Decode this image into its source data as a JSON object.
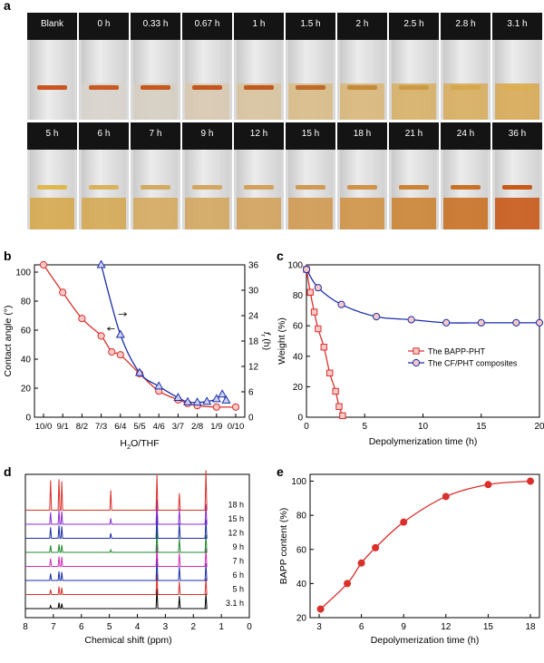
{
  "panel_labels": {
    "a": "a",
    "b": "b",
    "c": "c",
    "d": "d",
    "e": "e"
  },
  "vials_row1": [
    {
      "label": "Blank",
      "liquid": "#dcdcdc",
      "level": 0.0,
      "strip": "#c9551f"
    },
    {
      "label": "0 h",
      "liquid": "#d8d4cc",
      "level": 0.45,
      "strip": "#c65a22"
    },
    {
      "label": "0.33 h",
      "liquid": "#d6cfc2",
      "level": 0.45,
      "strip": "#c4581f"
    },
    {
      "label": "0.67 h",
      "liquid": "#d8c9b0",
      "level": 0.45,
      "strip": "#c2561e"
    },
    {
      "label": "1 h",
      "liquid": "#d8c39e",
      "level": 0.45,
      "strip": "#c05a20"
    },
    {
      "label": "1.5 h",
      "liquid": "#d9bd88",
      "level": 0.45,
      "strip": "#be6a28"
    },
    {
      "label": "2 h",
      "liquid": "#d9b77a",
      "level": 0.45,
      "strip": "#c48a3a"
    },
    {
      "label": "2.5 h",
      "liquid": "#d8b067",
      "level": 0.45,
      "strip": "#cc9a45"
    },
    {
      "label": "2.8 h",
      "liquid": "#d8ad5e",
      "level": 0.45,
      "strip": "#d6a84c"
    },
    {
      "label": "3.1 h",
      "liquid": "#d8aa55",
      "level": 0.45,
      "strip": "#dcb050"
    }
  ],
  "vials_row2": [
    {
      "label": "5 h",
      "liquid": "#d6a84e",
      "level": 0.4,
      "strip": "#e0b64f"
    },
    {
      "label": "6 h",
      "liquid": "#d4a954",
      "level": 0.4,
      "strip": "#d8b35c"
    },
    {
      "label": "7 h",
      "liquid": "#d4aa5e",
      "level": 0.4,
      "strip": "#d4aa5e"
    },
    {
      "label": "9 h",
      "liquid": "#d3a760",
      "level": 0.4,
      "strip": "#d3a760"
    },
    {
      "label": "12 h",
      "liquid": "#d2a25c",
      "level": 0.4,
      "strip": "#d2a25c"
    },
    {
      "label": "15 h",
      "liquid": "#d09a52",
      "level": 0.4,
      "strip": "#d09a52"
    },
    {
      "label": "18 h",
      "liquid": "#cf9246",
      "level": 0.4,
      "strip": "#cf9246"
    },
    {
      "label": "21 h",
      "liquid": "#cc8434",
      "level": 0.4,
      "strip": "#cc8434"
    },
    {
      "label": "24 h",
      "liquid": "#c97226",
      "level": 0.4,
      "strip": "#c97226"
    },
    {
      "label": "36 h",
      "liquid": "#c95a1a",
      "level": 0.4,
      "strip": "#c95a1a"
    }
  ],
  "chart_data": [
    {
      "panel": "b",
      "type": "line",
      "xlabel": "H2O/THF",
      "xlabel_parts": [
        "H",
        "2",
        "O/THF"
      ],
      "ylabel": "Contact angle (°)",
      "y2label": "f_r (h)",
      "y2label_parts": [
        "f",
        "r",
        "(h)"
      ],
      "categories": [
        "10/0",
        "9/1",
        "8/2",
        "7/3",
        "6/4",
        "5/5",
        "4/6",
        "3/7",
        "2/8",
        "1/9",
        "0/10"
      ],
      "ylim": [
        0,
        105
      ],
      "yticks": [
        0,
        20,
        40,
        60,
        80,
        100
      ],
      "y2lim": [
        0,
        36
      ],
      "y2ticks": [
        0,
        6,
        12,
        18,
        24,
        30,
        36
      ],
      "series": [
        {
          "axis": "left",
          "marker": "circle",
          "color": "#d9302c",
          "points": [
            [
              0,
              105
            ],
            [
              1,
              86
            ],
            [
              2,
              68
            ],
            [
              3,
              56
            ],
            [
              3.55,
              45
            ],
            [
              4,
              43
            ],
            [
              5,
              30
            ],
            [
              6,
              18
            ],
            [
              7,
              12
            ],
            [
              7.5,
              9.5
            ],
            [
              8,
              8
            ],
            [
              9,
              7
            ],
            [
              10,
              7
            ]
          ]
        },
        {
          "axis": "right",
          "marker": "triangle",
          "color": "#1a2ea8",
          "points": [
            [
              3,
              36
            ],
            [
              4,
              19.5
            ],
            [
              5,
              10.5
            ],
            [
              6,
              7.3
            ],
            [
              7,
              4.6
            ],
            [
              7.5,
              3.6
            ],
            [
              8,
              3.5
            ],
            [
              8.5,
              3.7
            ],
            [
              9,
              4.3
            ],
            [
              9.3,
              5.4
            ],
            [
              9.5,
              4.0
            ]
          ]
        }
      ]
    },
    {
      "panel": "c",
      "type": "line",
      "xlabel": "Depolymerization time (h)",
      "ylabel": "Weight (%)",
      "xlim": [
        0,
        20
      ],
      "xticks": [
        0,
        5,
        10,
        15,
        20
      ],
      "ylim": [
        0,
        100
      ],
      "yticks": [
        0,
        20,
        40,
        60,
        80,
        100
      ],
      "series": [
        {
          "name": "The BAPP-PHT",
          "marker": "square",
          "color": "#d9302c",
          "points": [
            [
              0,
              97
            ],
            [
              0.33,
              82
            ],
            [
              0.67,
              69
            ],
            [
              1,
              58
            ],
            [
              1.5,
              46
            ],
            [
              2,
              29
            ],
            [
              2.5,
              17
            ],
            [
              2.8,
              7
            ],
            [
              3.1,
              1
            ]
          ]
        },
        {
          "name": "The CF/PHT composites",
          "marker": "circle",
          "color": "#1a2ea8",
          "points": [
            [
              0,
              97
            ],
            [
              1,
              85
            ],
            [
              3,
              74
            ],
            [
              6,
              66
            ],
            [
              9,
              64
            ],
            [
              12,
              62
            ],
            [
              15,
              62
            ],
            [
              18,
              62
            ],
            [
              20,
              62
            ]
          ]
        }
      ],
      "legend_position": "right-middle"
    },
    {
      "panel": "d",
      "type": "line",
      "xlabel": "Chemical shift (ppm)",
      "xlim": [
        8,
        0
      ],
      "xticks": [
        8,
        7,
        6,
        5,
        4,
        3,
        2,
        1,
        0
      ],
      "peaks_ppm": [
        7.1,
        6.8,
        6.7,
        4.95,
        3.3,
        2.5,
        1.55
      ],
      "series": [
        {
          "name": "3.1 h",
          "color": "#000000",
          "heights": [
            6,
            12,
            10,
            0,
            40,
            25,
            30
          ]
        },
        {
          "name": "5 h",
          "color": "#d9302c",
          "heights": [
            10,
            16,
            14,
            0,
            42,
            26,
            32
          ]
        },
        {
          "name": "6 h",
          "color": "#1a2ea8",
          "heights": [
            14,
            18,
            17,
            0,
            45,
            28,
            34
          ]
        },
        {
          "name": "7 h",
          "color": "#cf2fb7",
          "heights": [
            16,
            20,
            19,
            0,
            44,
            27,
            36
          ]
        },
        {
          "name": "9 h",
          "color": "#1f8a2c",
          "heights": [
            14,
            16,
            15,
            5,
            48,
            28,
            35
          ]
        },
        {
          "name": "12 h",
          "color": "#1a2ea8",
          "heights": [
            22,
            26,
            24,
            10,
            48,
            30,
            38
          ]
        },
        {
          "name": "15 h",
          "color": "#8a2ccf",
          "heights": [
            24,
            28,
            26,
            12,
            50,
            30,
            40
          ]
        },
        {
          "name": "18 h",
          "color": "#d9302c",
          "heights": [
            60,
            62,
            58,
            40,
            70,
            34,
            80
          ]
        }
      ]
    },
    {
      "panel": "e",
      "type": "line",
      "xlabel": "Depolymerization time (h)",
      "ylabel": "BAPP content (%)",
      "xlim": [
        3,
        18
      ],
      "xticks": [
        3,
        6,
        9,
        12,
        15,
        18
      ],
      "ylim": [
        20,
        104
      ],
      "yticks": [
        20,
        40,
        60,
        80,
        100
      ],
      "series": [
        {
          "marker": "filled-circle",
          "color": "#d9302c",
          "points": [
            [
              3.1,
              25
            ],
            [
              5,
              40
            ],
            [
              6,
              52
            ],
            [
              7,
              61
            ],
            [
              9,
              76
            ],
            [
              12,
              91
            ],
            [
              15,
              98
            ],
            [
              18,
              100
            ]
          ]
        }
      ]
    }
  ]
}
